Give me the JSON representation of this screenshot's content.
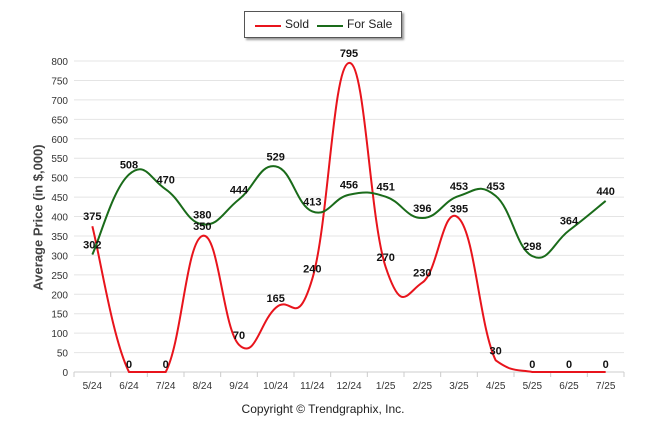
{
  "chart_data": {
    "type": "line",
    "categories": [
      "5/24",
      "6/24",
      "7/24",
      "8/24",
      "9/24",
      "10/24",
      "11/24",
      "12/24",
      "1/25",
      "2/25",
      "3/25",
      "4/25",
      "5/25",
      "6/25",
      "7/25"
    ],
    "ylabel": "Average Price (in $,000)",
    "ylim": [
      0,
      800
    ],
    "yticks": [
      0,
      50,
      100,
      150,
      200,
      250,
      300,
      350,
      400,
      450,
      500,
      550,
      600,
      650,
      700,
      750,
      800
    ],
    "grid": true,
    "legend_position": "top-center",
    "series": [
      {
        "name": "Sold",
        "color": "#e8141c",
        "values": [
          375,
          0,
          0,
          350,
          70,
          165,
          240,
          795,
          270,
          230,
          395,
          30,
          0,
          0,
          0
        ],
        "labels": [
          "375",
          "0",
          "0",
          "350",
          "70",
          "165",
          "240",
          "795",
          "270",
          "230",
          "395",
          "30",
          "0",
          "0",
          "0"
        ]
      },
      {
        "name": "For Sale",
        "color": "#1a6b1a",
        "values": [
          302,
          508,
          470,
          380,
          444,
          529,
          413,
          456,
          451,
          396,
          453,
          453,
          298,
          364,
          440
        ],
        "labels": [
          "302",
          "508",
          "470",
          "380",
          "444",
          "529",
          "413",
          "456",
          "451",
          "396",
          "453",
          "453",
          "298",
          "364",
          "440"
        ]
      }
    ]
  },
  "footer": "Copyright © Trendgraphix, Inc."
}
